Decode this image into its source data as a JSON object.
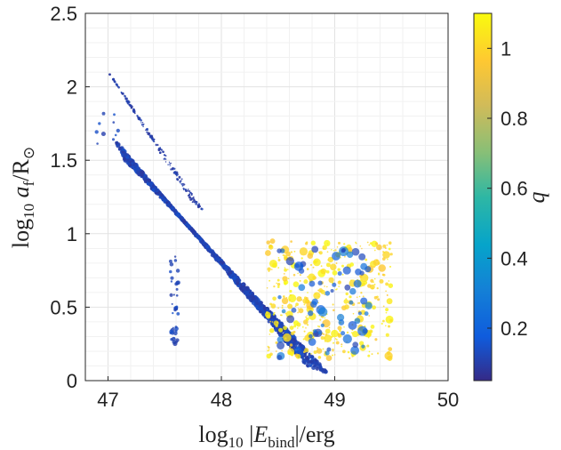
{
  "chart_data": {
    "type": "scatter",
    "xlabel": "log10 |E_bind|/erg",
    "ylabel": "log10 a_f/R_⊙",
    "xlim": [
      46.8,
      50
    ],
    "ylim": [
      0,
      2.5
    ],
    "xticks": [
      47,
      48,
      49,
      50
    ],
    "xtick_labels": [
      "47",
      "48",
      "49",
      "50"
    ],
    "yticks": [
      0,
      0.5,
      1,
      1.5,
      2,
      2.5
    ],
    "ytick_labels": [
      "0",
      "0.5",
      "1",
      "1.5",
      "2",
      "2.5"
    ],
    "grid": true,
    "colorbar": {
      "label": "q",
      "range": [
        0.05,
        1.1
      ],
      "ticks": [
        0.2,
        0.4,
        0.6,
        0.8,
        1
      ],
      "tick_labels": [
        "0.2",
        "0.4",
        "0.6",
        "0.8",
        "1"
      ],
      "colormap": "parula"
    },
    "point_groups": [
      {
        "description": "main diagonal band (low q)",
        "x_start": [
          47.05,
          47.15
        ],
        "x_end": [
          48.75,
          48.95
        ],
        "y_start": [
          1.65,
          1.5
        ],
        "y_end": [
          0.1,
          0.05
        ],
        "q": [
          0.08,
          0.15
        ],
        "n": 1400
      },
      {
        "description": "upper thin branch (low q)",
        "x_start": [
          47.0,
          47.05
        ],
        "x_end": [
          47.75,
          47.85
        ],
        "y_start": [
          2.1,
          2.05
        ],
        "y_end": [
          1.2,
          1.15
        ],
        "q": [
          0.08,
          0.12
        ],
        "n": 220
      },
      {
        "description": "scattered high-q points near right end",
        "x_range": [
          48.4,
          49.5
        ],
        "y_range": [
          0.15,
          0.95
        ],
        "q": [
          0.95,
          1.1
        ],
        "n": 420
      },
      {
        "description": "large low-q markers near right end",
        "x_range": [
          48.5,
          49.3
        ],
        "y_range": [
          0.15,
          0.9
        ],
        "q": [
          0.1,
          0.3
        ],
        "n": 70
      },
      {
        "description": "vertical low-q streak",
        "x_range": [
          47.55,
          47.62
        ],
        "y_range": [
          0.25,
          0.85
        ],
        "q": [
          0.1,
          0.15
        ],
        "n": 40
      },
      {
        "description": "left outliers",
        "x_range": [
          46.88,
          47.1
        ],
        "y_range": [
          1.58,
          1.82
        ],
        "q": [
          0.1,
          0.15
        ],
        "n": 10
      }
    ]
  }
}
